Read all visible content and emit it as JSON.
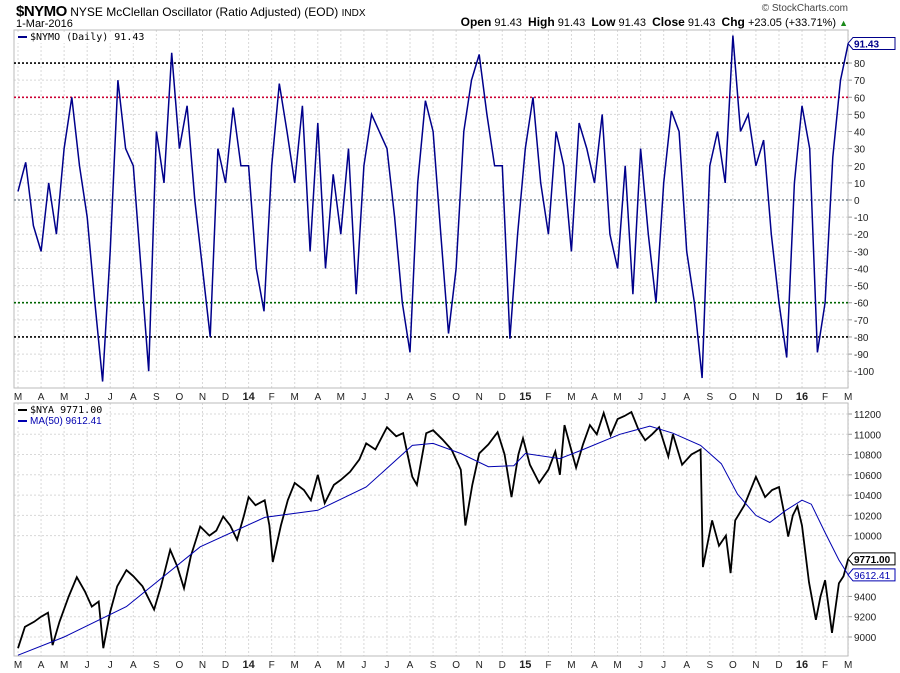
{
  "header": {
    "symbol": "$NYMO",
    "title": "NYSE McClellan Oscillator (Ratio Adjusted) (EOD)",
    "exchange": "INDX",
    "date": "1-Mar-2016",
    "copyright": "© StockCharts.com",
    "open_label": "Open",
    "open": "91.43",
    "high_label": "High",
    "high": "91.43",
    "low_label": "Low",
    "low": "91.43",
    "close_label": "Close",
    "close": "91.43",
    "chg_label": "Chg",
    "chg": "+23.05 (+33.71%)",
    "trend_icon": "triangle-up"
  },
  "colors": {
    "nymo": "#00008b",
    "nya": "#000000",
    "ma": "#0000b0",
    "ref80": "#000000",
    "ref60": "#cc0033",
    "ref0": "#7f8c95",
    "refm60": "#006400",
    "refm80": "#000000",
    "grid": "#d8d8d8"
  },
  "chart_data": [
    {
      "type": "line",
      "title": "$NYMO (Daily)",
      "legend": "$NYMO (Daily) 91.43",
      "last_value_tag": "91.43",
      "x_unit": "months since Mar 2013 (value every 1/3 month)",
      "ylim": [
        -107,
        100
      ],
      "yticks": [
        "80",
        "70",
        "60",
        "50",
        "40",
        "30",
        "20",
        "10",
        "0",
        "-10",
        "-20",
        "-30",
        "-40",
        "-50",
        "-60",
        "-70",
        "-80",
        "-90",
        "-100"
      ],
      "reference_lines": [
        80,
        60,
        0,
        -60,
        -80
      ],
      "values": [
        5,
        22,
        -15,
        -30,
        10,
        -20,
        30,
        60,
        20,
        -10,
        -60,
        -106,
        -30,
        70,
        30,
        20,
        -40,
        -100,
        40,
        10,
        86,
        30,
        55,
        0,
        -40,
        -80,
        30,
        10,
        54,
        20,
        20,
        -40,
        -65,
        20,
        68,
        40,
        10,
        55,
        -30,
        45,
        -40,
        15,
        -20,
        30,
        -55,
        20,
        50,
        40,
        30,
        -10,
        -60,
        -89,
        10,
        58,
        40,
        -20,
        -78,
        -40,
        40,
        70,
        85,
        50,
        20,
        20,
        -81,
        -20,
        30,
        60,
        10,
        -20,
        40,
        20,
        -30,
        45,
        30,
        10,
        50,
        -20,
        -40,
        20,
        -55,
        30,
        -20,
        -60,
        10,
        52,
        40,
        -30,
        -60,
        -104,
        20,
        40,
        10,
        96,
        40,
        50,
        20,
        35,
        -20,
        -60,
        -92,
        10,
        55,
        30,
        -89,
        -60,
        25,
        70,
        91.43
      ]
    },
    {
      "type": "line",
      "title": "$NYA",
      "legend_price": "$NYA 9771.00",
      "legend_ma": "MA(50) 9612.41",
      "price_tag": "9771.00",
      "ma_tag": "9612.41",
      "x_unit": "months since Mar 2013",
      "ylim": [
        8780,
        11320
      ],
      "yticks": [
        "11200",
        "11000",
        "10800",
        "10600",
        "10400",
        "10200",
        "10000",
        "9400",
        "9200",
        "9000"
      ],
      "series": [
        {
          "name": "$NYA",
          "points": [
            [
              0,
              8890
            ],
            [
              0.3,
              9100
            ],
            [
              0.7,
              9150
            ],
            [
              1,
              9200
            ],
            [
              1.3,
              9240
            ],
            [
              1.5,
              8920
            ],
            [
              1.8,
              9150
            ],
            [
              2.2,
              9400
            ],
            [
              2.55,
              9590
            ],
            [
              2.9,
              9450
            ],
            [
              3.2,
              9300
            ],
            [
              3.5,
              9350
            ],
            [
              3.7,
              8890
            ],
            [
              4,
              9250
            ],
            [
              4.3,
              9500
            ],
            [
              4.7,
              9660
            ],
            [
              5,
              9600
            ],
            [
              5.4,
              9500
            ],
            [
              5.9,
              9270
            ],
            [
              6.2,
              9500
            ],
            [
              6.6,
              9860
            ],
            [
              6.9,
              9700
            ],
            [
              7.2,
              9480
            ],
            [
              7.5,
              9800
            ],
            [
              7.9,
              10090
            ],
            [
              8.3,
              10000
            ],
            [
              8.6,
              10050
            ],
            [
              8.9,
              10190
            ],
            [
              9.2,
              10100
            ],
            [
              9.5,
              9960
            ],
            [
              9.8,
              10200
            ],
            [
              10,
              10380
            ],
            [
              10.3,
              10300
            ],
            [
              10.7,
              10350
            ],
            [
              10.9,
              10100
            ],
            [
              11.05,
              9740
            ],
            [
              11.4,
              10100
            ],
            [
              11.7,
              10350
            ],
            [
              12,
              10520
            ],
            [
              12.4,
              10450
            ],
            [
              12.7,
              10350
            ],
            [
              13,
              10600
            ],
            [
              13.3,
              10320
            ],
            [
              13.7,
              10500
            ],
            [
              14,
              10550
            ],
            [
              14.4,
              10630
            ],
            [
              14.8,
              10750
            ],
            [
              15.1,
              10910
            ],
            [
              15.5,
              10850
            ],
            [
              16,
              11070
            ],
            [
              16.4,
              10980
            ],
            [
              16.7,
              11010
            ],
            [
              17.1,
              10580
            ],
            [
              17.3,
              10500
            ],
            [
              17.7,
              11010
            ],
            [
              18,
              11040
            ],
            [
              18.4,
              10950
            ],
            [
              18.8,
              10850
            ],
            [
              19.2,
              10650
            ],
            [
              19.4,
              10100
            ],
            [
              19.7,
              10500
            ],
            [
              20,
              10810
            ],
            [
              20.4,
              10900
            ],
            [
              20.8,
              11020
            ],
            [
              21.1,
              10800
            ],
            [
              21.4,
              10380
            ],
            [
              21.7,
              10800
            ],
            [
              21.9,
              10960
            ],
            [
              22.2,
              10700
            ],
            [
              22.6,
              10520
            ],
            [
              23,
              10650
            ],
            [
              23.3,
              10830
            ],
            [
              23.5,
              10600
            ],
            [
              23.7,
              11090
            ],
            [
              24.2,
              10670
            ],
            [
              24.5,
              10900
            ],
            [
              24.8,
              11090
            ],
            [
              25.1,
              11000
            ],
            [
              25.4,
              11210
            ],
            [
              25.7,
              10990
            ],
            [
              26,
              11150
            ],
            [
              26.3,
              11180
            ],
            [
              26.6,
              11220
            ],
            [
              26.9,
              11050
            ],
            [
              27.2,
              10940
            ],
            [
              27.5,
              11000
            ],
            [
              27.8,
              11070
            ],
            [
              28.2,
              10780
            ],
            [
              28.4,
              11000
            ],
            [
              28.8,
              10700
            ],
            [
              29.2,
              10800
            ],
            [
              29.6,
              10850
            ],
            [
              29.7,
              9690
            ],
            [
              30.1,
              10150
            ],
            [
              30.4,
              9900
            ],
            [
              30.7,
              10000
            ],
            [
              30.9,
              9630
            ],
            [
              31.1,
              10150
            ],
            [
              31.5,
              10300
            ],
            [
              32,
              10580
            ],
            [
              32.4,
              10380
            ],
            [
              32.7,
              10450
            ],
            [
              33,
              10480
            ],
            [
              33.2,
              10250
            ],
            [
              33.4,
              9990
            ],
            [
              33.6,
              10200
            ],
            [
              33.8,
              10290
            ],
            [
              34,
              10100
            ],
            [
              34.3,
              9540
            ],
            [
              34.6,
              9170
            ],
            [
              34.8,
              9400
            ],
            [
              35,
              9560
            ],
            [
              35.3,
              9040
            ],
            [
              35.6,
              9530
            ],
            [
              35.8,
              9600
            ],
            [
              36,
              9771
            ]
          ]
        },
        {
          "name": "MA(50)",
          "points": [
            [
              0,
              8820
            ],
            [
              2,
              9000
            ],
            [
              4.7,
              9300
            ],
            [
              7.9,
              9890
            ],
            [
              10.7,
              10180
            ],
            [
              13,
              10250
            ],
            [
              15.1,
              10480
            ],
            [
              17.1,
              10890
            ],
            [
              18,
              10910
            ],
            [
              19.2,
              10810
            ],
            [
              20.4,
              10680
            ],
            [
              21.5,
              10690
            ],
            [
              22,
              10810
            ],
            [
              23.5,
              10760
            ],
            [
              24.4,
              10840
            ],
            [
              26.1,
              11000
            ],
            [
              27.4,
              11080
            ],
            [
              28.4,
              11010
            ],
            [
              29.6,
              10890
            ],
            [
              30.5,
              10710
            ],
            [
              31.2,
              10410
            ],
            [
              32,
              10200
            ],
            [
              32.6,
              10130
            ],
            [
              33.3,
              10250
            ],
            [
              34,
              10350
            ],
            [
              34.4,
              10310
            ],
            [
              35,
              10030
            ],
            [
              35.6,
              9760
            ],
            [
              36,
              9612.41
            ]
          ]
        }
      ]
    }
  ],
  "x_axis": {
    "labels": [
      "M",
      "A",
      "M",
      "J",
      "J",
      "A",
      "S",
      "O",
      "N",
      "D",
      "14",
      "F",
      "M",
      "A",
      "M",
      "J",
      "J",
      "A",
      "S",
      "O",
      "N",
      "D",
      "15",
      "F",
      "M",
      "A",
      "M",
      "J",
      "J",
      "A",
      "S",
      "O",
      "N",
      "D",
      "16",
      "F",
      "M"
    ]
  }
}
